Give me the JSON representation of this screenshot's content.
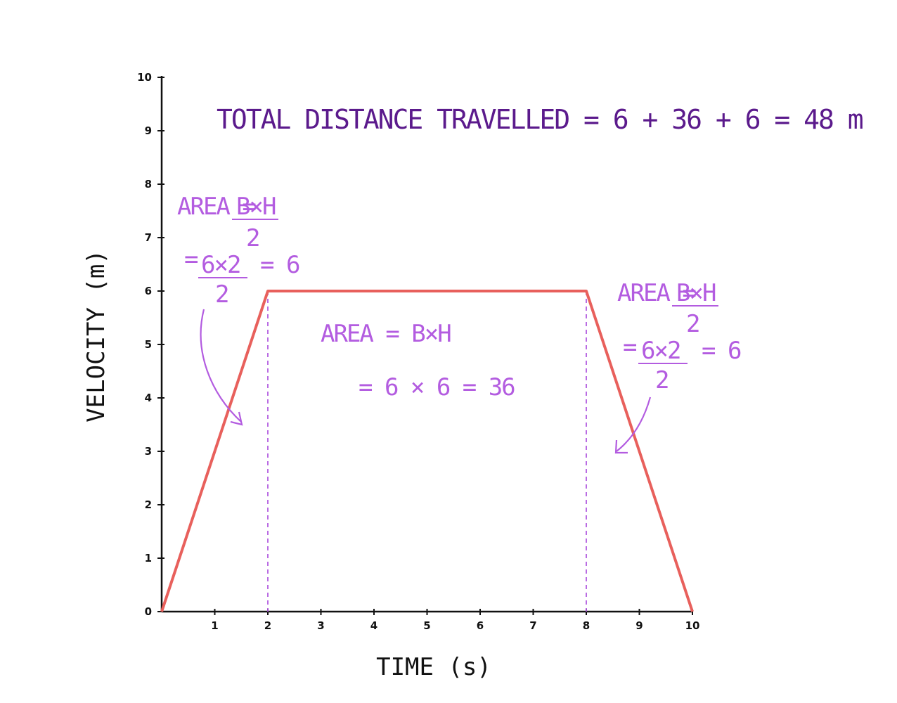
{
  "chart_data": {
    "type": "line",
    "xlabel": "TIME (s)",
    "ylabel": "VELOCITY (m)",
    "xlim": [
      0,
      10
    ],
    "ylim": [
      0,
      10
    ],
    "x_ticks": [
      "1",
      "2",
      "3",
      "4",
      "5",
      "6",
      "7",
      "8",
      "9",
      "10"
    ],
    "y_ticks": [
      "0",
      "1",
      "2",
      "3",
      "4",
      "5",
      "6",
      "7",
      "8",
      "9",
      "10"
    ],
    "grid": false,
    "series": [
      {
        "x": [
          0,
          2,
          8,
          10
        ],
        "y": [
          0,
          6,
          6,
          0
        ],
        "color": "#e8605c"
      }
    ],
    "guides_x": [
      2,
      8
    ],
    "annotations": {
      "total": "TOTAL DISTANCE TRAVELLED = 6 + 36 + 6 = 48 m",
      "left": {
        "line1": "AREA = ",
        "frac_num": "B×H",
        "frac_den": "2",
        "line2_prefix": "=",
        "frac2_num": "6×2",
        "frac2_den": "2",
        "line2_result": "= 6"
      },
      "middle": {
        "line1": "AREA = B×H",
        "line2": "= 6 × 6 = 36"
      },
      "right": {
        "line1": "AREA = ",
        "frac_num": "B×H",
        "frac_den": "2",
        "line2_prefix": "=",
        "frac2_num": "6×2",
        "frac2_den": "2",
        "line2_result": "= 6"
      }
    }
  },
  "colors": {
    "line": "#e8605c",
    "total_text": "#5b1a8c",
    "annotation": "#b35ce0",
    "axis": "#111111"
  }
}
